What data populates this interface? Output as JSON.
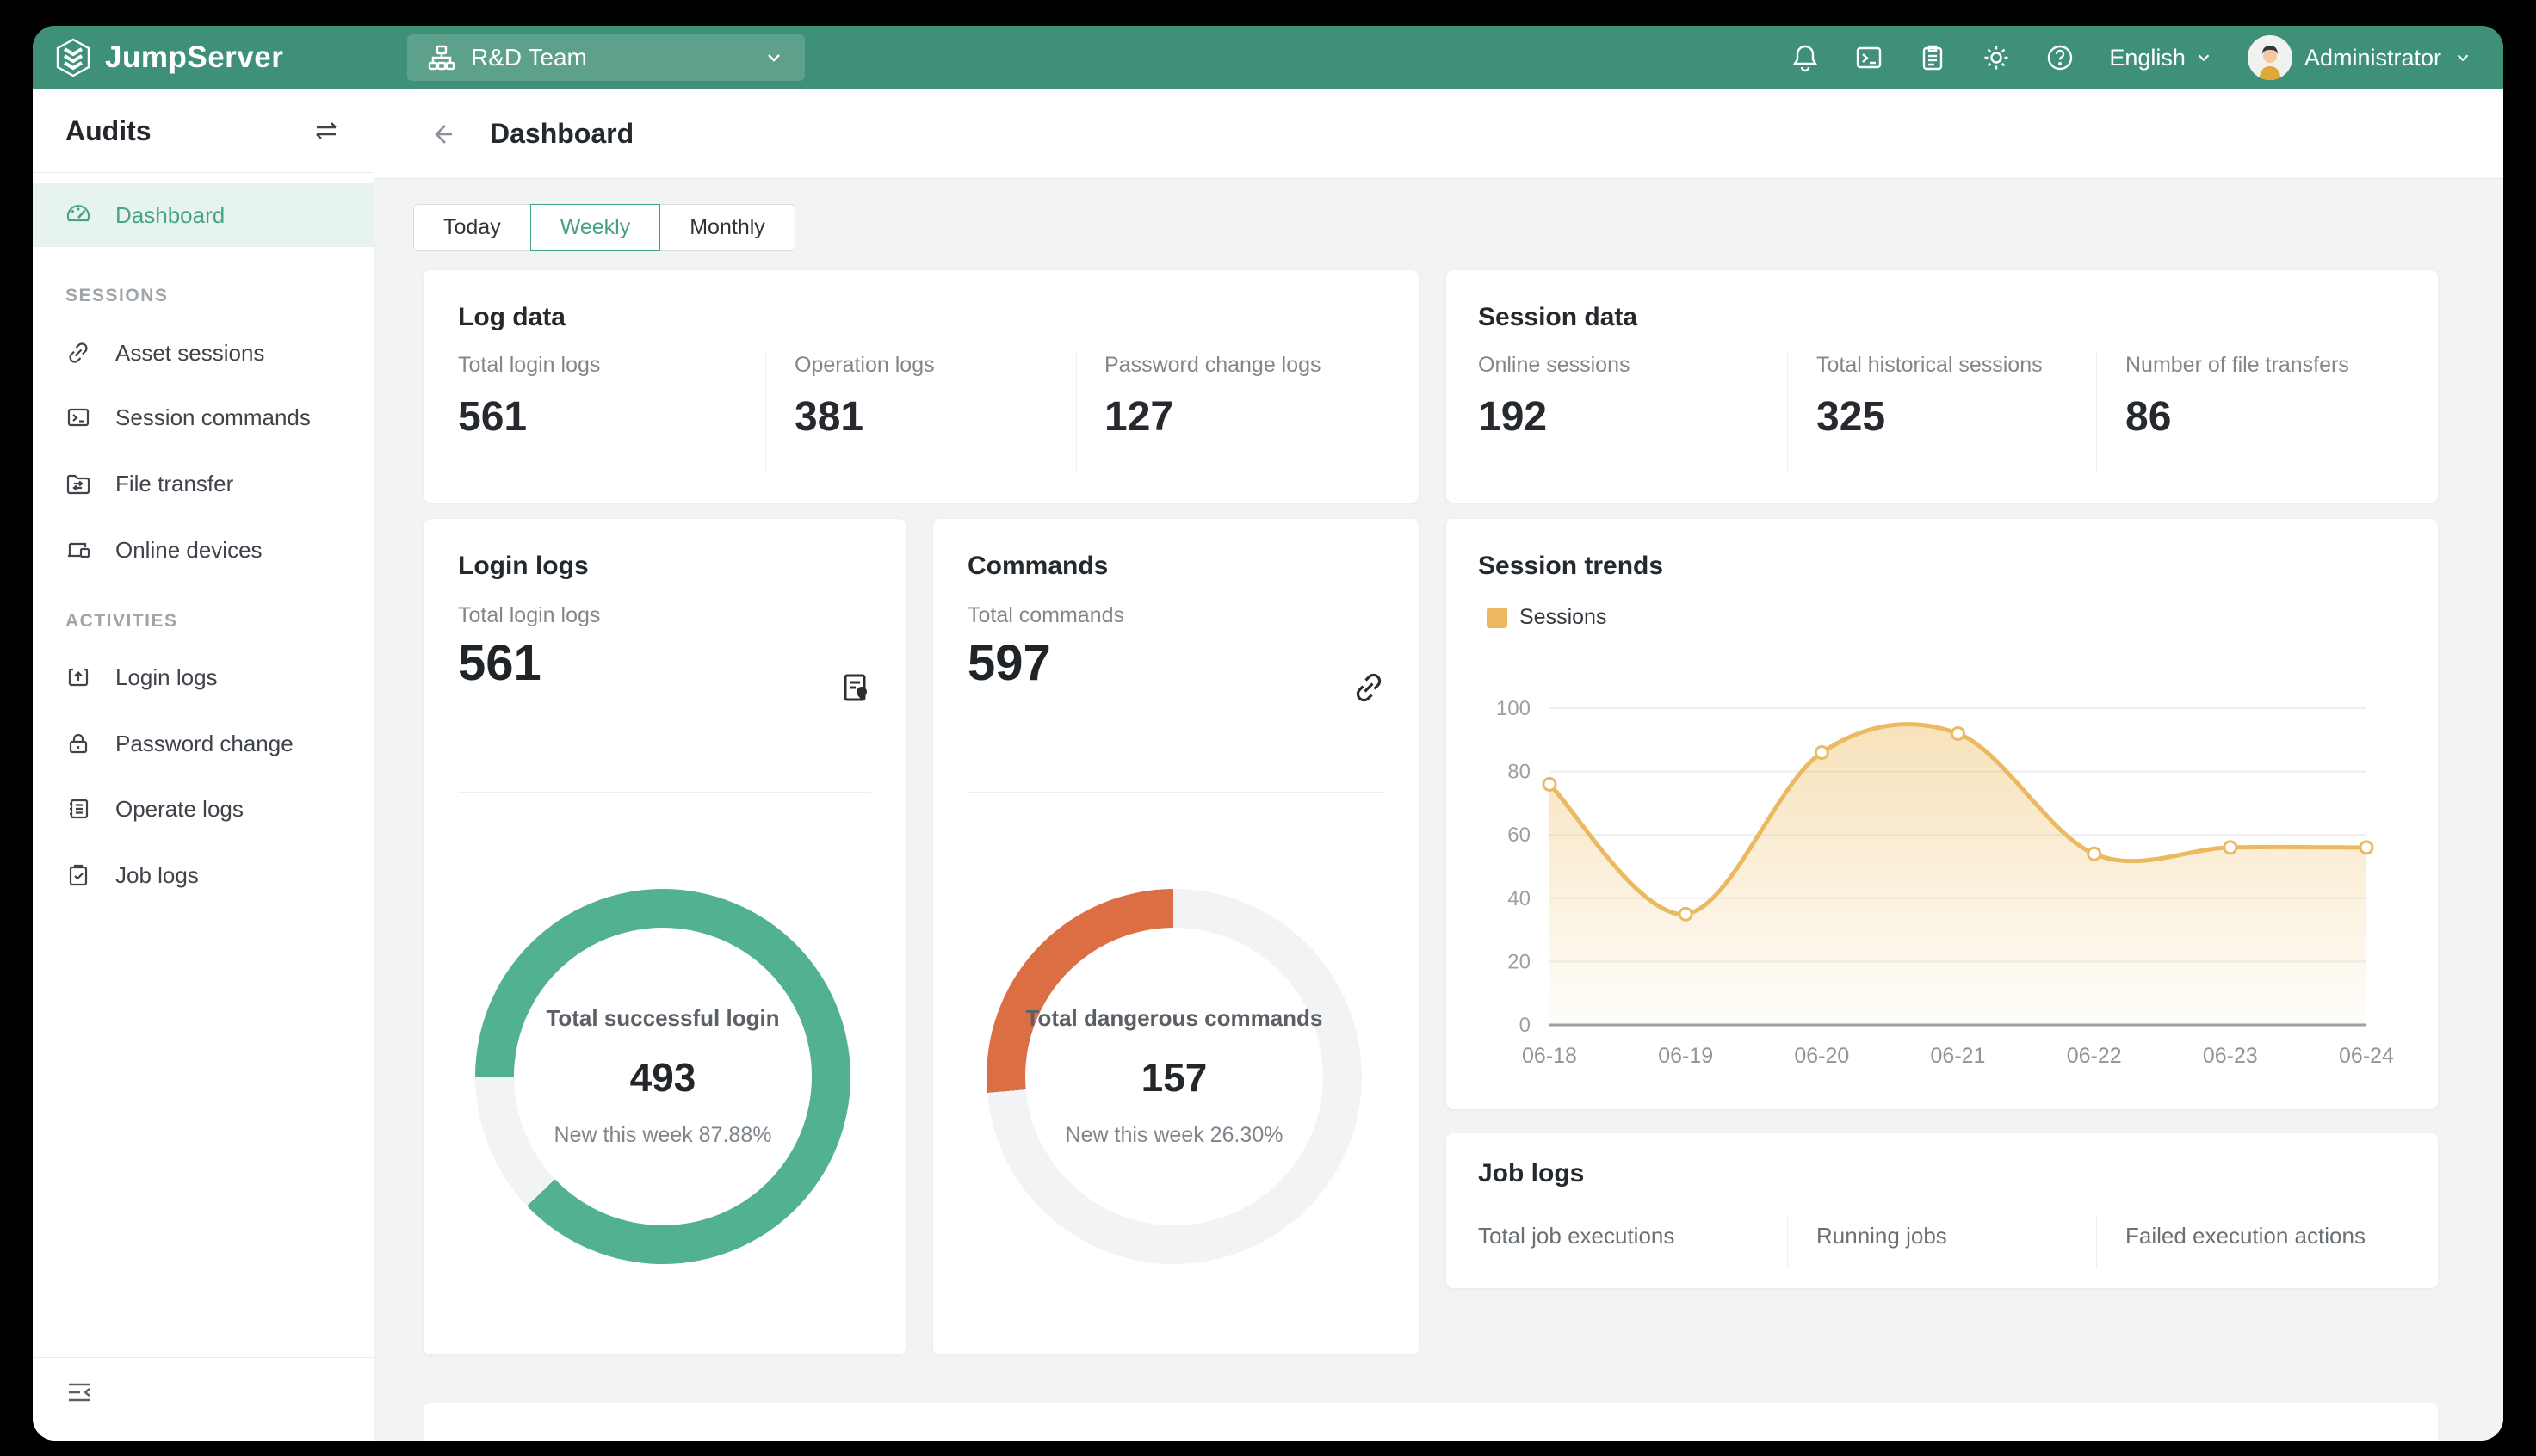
{
  "topbar": {
    "brand": "JumpServer",
    "org": {
      "label": "R&D Team"
    },
    "language": {
      "label": "English"
    },
    "user": {
      "name": "Administrator"
    }
  },
  "sidebar": {
    "title": "Audits",
    "dashboard": {
      "label": "Dashboard"
    },
    "sections": [
      {
        "label": "SESSIONS",
        "items": [
          {
            "label": "Asset sessions"
          },
          {
            "label": "Session commands"
          },
          {
            "label": "File transfer"
          },
          {
            "label": "Online devices"
          }
        ]
      },
      {
        "label": "ACTIVITIES",
        "items": [
          {
            "label": "Login logs"
          },
          {
            "label": "Password change"
          },
          {
            "label": "Operate logs"
          },
          {
            "label": "Job logs"
          }
        ]
      }
    ]
  },
  "header": {
    "title": "Dashboard"
  },
  "tabs": [
    {
      "label": "Today",
      "active": false
    },
    {
      "label": "Weekly",
      "active": true
    },
    {
      "label": "Monthly",
      "active": false
    }
  ],
  "cards": {
    "log_data": {
      "title": "Log data",
      "stats": [
        {
          "label": "Total login logs",
          "value": "561"
        },
        {
          "label": "Operation logs",
          "value": "381"
        },
        {
          "label": "Password change logs",
          "value": "127"
        }
      ]
    },
    "session_data": {
      "title": "Session data",
      "stats": [
        {
          "label": "Online sessions",
          "value": "192"
        },
        {
          "label": "Total historical sessions",
          "value": "325"
        },
        {
          "label": "Number of file transfers",
          "value": "86"
        }
      ]
    },
    "login_logs": {
      "title": "Login logs",
      "stat_label": "Total login logs",
      "stat_value": "561",
      "donut": {
        "label": "Total successful login",
        "value": "493",
        "sub": "New this week 87.88%",
        "percent": 87.88,
        "start_deg": 270,
        "color": "#52B093",
        "track": "#F1F3F4"
      }
    },
    "commands": {
      "title": "Commands",
      "stat_label": "Total commands",
      "stat_value": "597",
      "donut": {
        "label": "Total dangerous commands",
        "value": "157",
        "sub": "New this week 26.30%",
        "percent": 26.3,
        "start_deg": 265,
        "color": "#DB6E43",
        "track": "#F1F3F4"
      }
    },
    "session_trends": {
      "title": "Session trends"
    },
    "job_logs": {
      "title": "Job logs",
      "stats": [
        {
          "label": "Total job executions",
          "value": ""
        },
        {
          "label": "Running jobs",
          "value": ""
        },
        {
          "label": "Failed execution actions",
          "value": ""
        }
      ]
    }
  },
  "chart_data": {
    "type": "area",
    "title": "Session trends",
    "legend": [
      "Sessions"
    ],
    "legend_position": "top-left",
    "categories": [
      "06-18",
      "06-19",
      "06-20",
      "06-21",
      "06-22",
      "06-23",
      "06-24"
    ],
    "series": [
      {
        "name": "Sessions",
        "values": [
          76,
          35,
          86,
          92,
          54,
          56,
          56
        ]
      }
    ],
    "ylim": [
      0,
      100
    ],
    "y_ticks": [
      0,
      20,
      40,
      60,
      80,
      100
    ],
    "grid": true,
    "smooth": true,
    "line_color": "#EBB961",
    "marker_fill": "#FFFFFF",
    "area_from": "rgba(240,197,117,0.50)",
    "area_to": "rgba(240,197,117,0.03)",
    "axis_color": "#9B9FA3",
    "grid_color": "#EDEEEF",
    "tick_color": "#9AA0A6"
  }
}
